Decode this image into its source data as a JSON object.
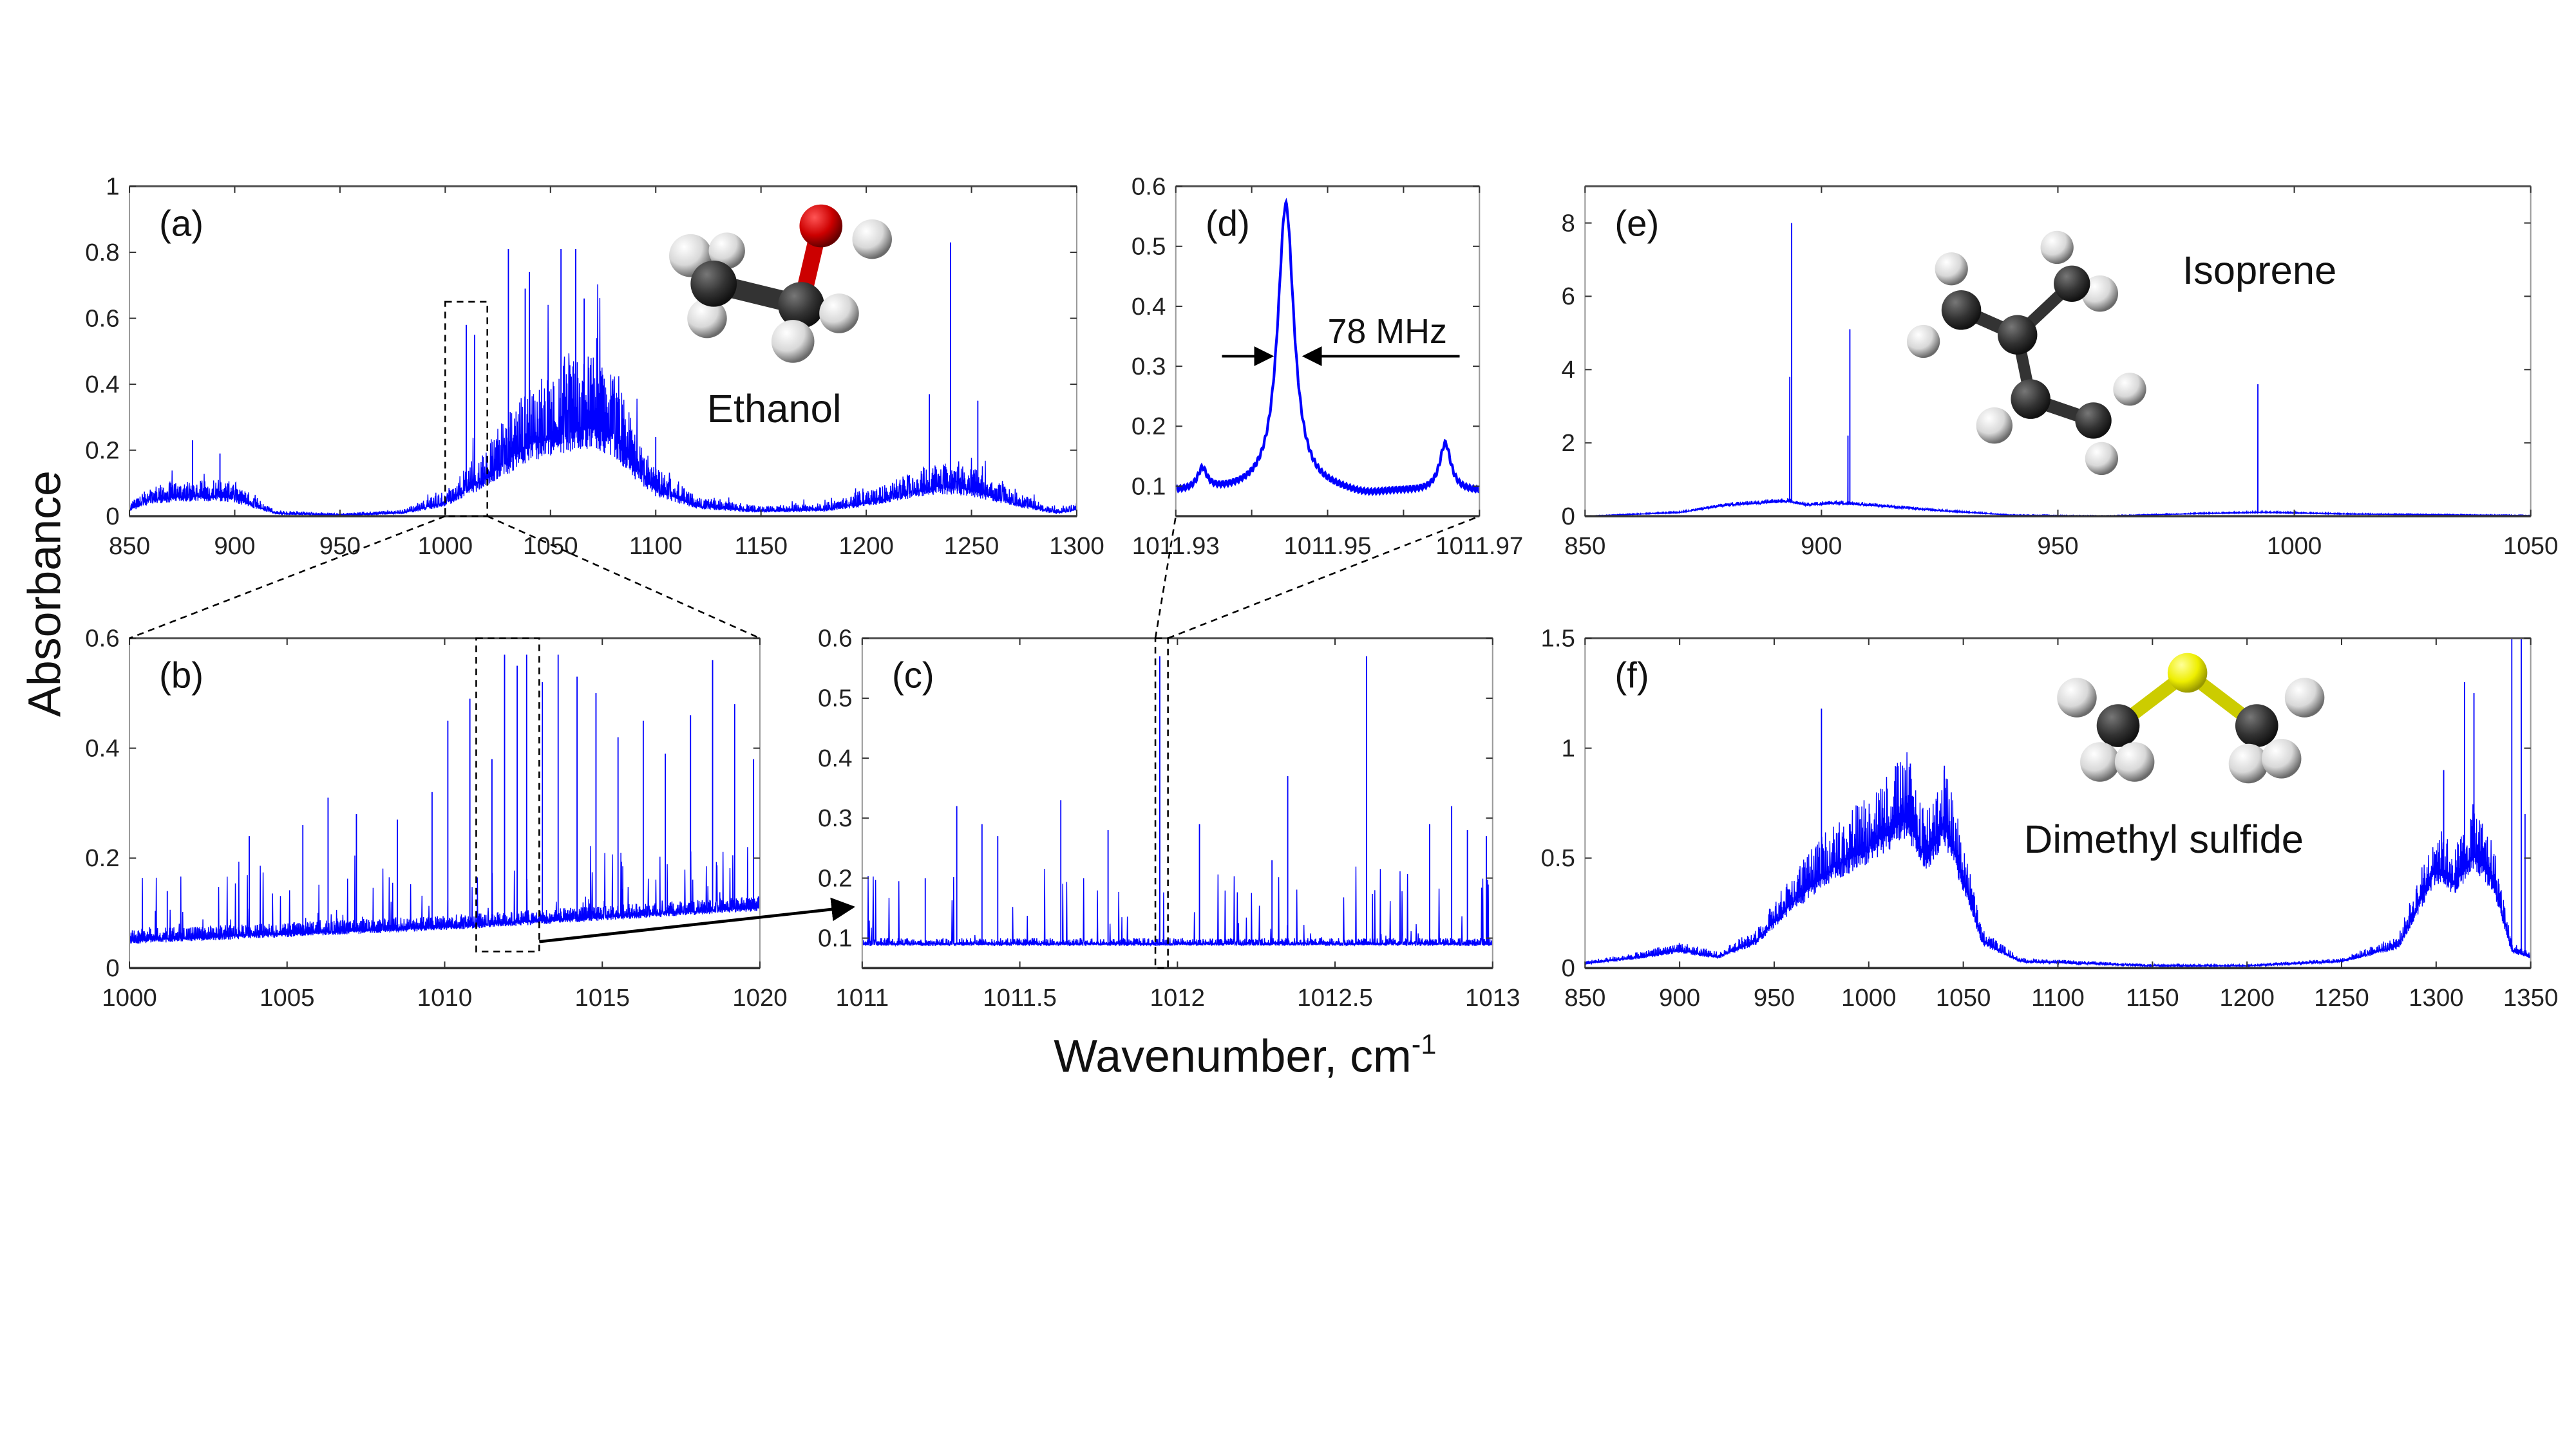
{
  "ylabel": "Absorbance",
  "xlabel": "Wavenumber, cm",
  "xlabel_superscript": "-1",
  "annotations": {
    "linewidth": "78 MHz"
  },
  "colors": {
    "line": "#0000ff",
    "axis": "#333333",
    "oxygen": "#cc0000",
    "sulfur": "#e8e800",
    "carbon": "#333333",
    "hydrogen": "#e6e6e6"
  },
  "chart_data": [
    {
      "id": "a",
      "type": "line",
      "panel_label": "(a)",
      "molecule": "Ethanol",
      "xlim": [
        850,
        1300
      ],
      "ylim": [
        0,
        1
      ],
      "xticks": [
        850,
        900,
        950,
        1000,
        1050,
        1100,
        1150,
        1200,
        1250,
        1300
      ],
      "yticks": [
        0,
        0.2,
        0.4,
        0.6,
        0.8,
        1
      ],
      "baseline": [
        [
          850,
          0.02
        ],
        [
          860,
          0.05
        ],
        [
          875,
          0.06
        ],
        [
          890,
          0.06
        ],
        [
          900,
          0.055
        ],
        [
          910,
          0.03
        ],
        [
          920,
          0.008
        ],
        [
          950,
          0.003
        ],
        [
          980,
          0.01
        ],
        [
          1000,
          0.04
        ],
        [
          1020,
          0.12
        ],
        [
          1040,
          0.22
        ],
        [
          1060,
          0.26
        ],
        [
          1070,
          0.27
        ],
        [
          1080,
          0.24
        ],
        [
          1090,
          0.15
        ],
        [
          1100,
          0.08
        ],
        [
          1120,
          0.03
        ],
        [
          1150,
          0.015
        ],
        [
          1180,
          0.02
        ],
        [
          1200,
          0.04
        ],
        [
          1220,
          0.07
        ],
        [
          1235,
          0.09
        ],
        [
          1250,
          0.08
        ],
        [
          1270,
          0.04
        ],
        [
          1290,
          0.01
        ],
        [
          1300,
          0.02
        ]
      ],
      "peaks": [
        [
          880,
          0.23
        ],
        [
          893,
          0.19
        ],
        [
          1010,
          0.58
        ],
        [
          1014,
          0.55
        ],
        [
          1030,
          0.81
        ],
        [
          1038,
          0.69
        ],
        [
          1040,
          0.74
        ],
        [
          1055,
          0.81
        ],
        [
          1062,
          0.81
        ],
        [
          1066,
          0.66
        ],
        [
          1072,
          0.54
        ],
        [
          1082,
          0.36
        ],
        [
          1100,
          0.24
        ],
        [
          1230,
          0.37
        ],
        [
          1240,
          0.83
        ],
        [
          1253,
          0.35
        ]
      ],
      "zoom_box": {
        "x": [
          1000,
          1020
        ],
        "y": [
          0,
          0.65
        ]
      }
    },
    {
      "id": "b",
      "type": "line",
      "panel_label": "(b)",
      "xlim": [
        1000,
        1020
      ],
      "ylim": [
        0,
        0.6
      ],
      "xticks": [
        1000,
        1005,
        1010,
        1015,
        1020
      ],
      "yticks": [
        0,
        0.2,
        0.4,
        0.6
      ],
      "baseline": [
        [
          1000,
          0.05
        ],
        [
          1010,
          0.075
        ],
        [
          1020,
          0.11
        ]
      ],
      "peaks": [
        [
          1001.2,
          0.14
        ],
        [
          1003.8,
          0.24
        ],
        [
          1005.5,
          0.26
        ],
        [
          1006.3,
          0.31
        ],
        [
          1007.2,
          0.28
        ],
        [
          1008.5,
          0.27
        ],
        [
          1009.6,
          0.32
        ],
        [
          1010.1,
          0.45
        ],
        [
          1010.8,
          0.49
        ],
        [
          1011.5,
          0.38
        ],
        [
          1011.9,
          0.57
        ],
        [
          1012.3,
          0.55
        ],
        [
          1012.6,
          0.57
        ],
        [
          1013.1,
          0.52
        ],
        [
          1013.6,
          0.57
        ],
        [
          1014.2,
          0.53
        ],
        [
          1014.8,
          0.5
        ],
        [
          1015.5,
          0.42
        ],
        [
          1016.3,
          0.45
        ],
        [
          1017.0,
          0.39
        ],
        [
          1017.8,
          0.46
        ],
        [
          1018.5,
          0.56
        ],
        [
          1019.2,
          0.48
        ],
        [
          1019.8,
          0.38
        ]
      ],
      "zoom_box": {
        "x": [
          1011,
          1013
        ],
        "y": [
          0.03,
          0.6
        ]
      }
    },
    {
      "id": "c",
      "type": "line",
      "panel_label": "(c)",
      "xlim": [
        1011,
        1013
      ],
      "ylim": [
        0.05,
        0.6
      ],
      "xticks": [
        1011,
        1011.5,
        1012,
        1012.5,
        1013
      ],
      "yticks": [
        0.1,
        0.2,
        0.3,
        0.4,
        0.5,
        0.6
      ],
      "baseline": [
        [
          1011,
          0.09
        ],
        [
          1013,
          0.09
        ]
      ],
      "peaks": [
        [
          1011.2,
          0.2
        ],
        [
          1011.3,
          0.32
        ],
        [
          1011.38,
          0.29
        ],
        [
          1011.43,
          0.27
        ],
        [
          1011.63,
          0.33
        ],
        [
          1011.78,
          0.28
        ],
        [
          1011.944,
          0.57
        ],
        [
          1012.07,
          0.29
        ],
        [
          1012.3,
          0.23
        ],
        [
          1012.35,
          0.37
        ],
        [
          1012.6,
          0.57
        ],
        [
          1012.8,
          0.29
        ],
        [
          1012.87,
          0.32
        ],
        [
          1012.92,
          0.28
        ],
        [
          1012.98,
          0.27
        ]
      ],
      "zoom_box": {
        "x": [
          1011.93,
          1011.97
        ],
        "y": [
          0.05,
          0.6
        ]
      }
    },
    {
      "id": "d",
      "type": "line",
      "panel_label": "(d)",
      "xlim": [
        1011.93,
        1011.97
      ],
      "ylim": [
        0.05,
        0.6
      ],
      "xticks": [
        1011.93,
        1011.94,
        1011.95,
        1011.96,
        1011.97
      ],
      "xticklabels": [
        "1011.93",
        "",
        "1011.95",
        "",
        "1011.97"
      ],
      "yticks": [
        0.1,
        0.2,
        0.3,
        0.4,
        0.5,
        0.6
      ],
      "baseline": [
        [
          1011.93,
          0.09
        ],
        [
          1011.97,
          0.09
        ]
      ],
      "lorentz_peaks": [
        [
          1011.9335,
          0.035,
          0.0015
        ],
        [
          1011.9445,
          0.48,
          0.0026
        ],
        [
          1011.9655,
          0.08,
          0.0018
        ]
      ]
    },
    {
      "id": "e",
      "type": "line",
      "panel_label": "(e)",
      "molecule": "Isoprene",
      "xlim": [
        850,
        1050
      ],
      "ylim": [
        0,
        9
      ],
      "xticks": [
        850,
        900,
        950,
        1000,
        1050
      ],
      "yticks": [
        0,
        2,
        4,
        6,
        8
      ],
      "baseline": [
        [
          850,
          0
        ],
        [
          870,
          0.1
        ],
        [
          880,
          0.3
        ],
        [
          893,
          0.4
        ],
        [
          897,
          0.3
        ],
        [
          903,
          0.35
        ],
        [
          910,
          0.3
        ],
        [
          925,
          0.15
        ],
        [
          940,
          0.03
        ],
        [
          960,
          0.01
        ],
        [
          980,
          0.07
        ],
        [
          992,
          0.1
        ],
        [
          995,
          0.1
        ],
        [
          1010,
          0.06
        ],
        [
          1050,
          0.02
        ]
      ],
      "peaks": [
        [
          893.3,
          3.8
        ],
        [
          893.7,
          8.0
        ],
        [
          905.6,
          2.2
        ],
        [
          906,
          5.1
        ],
        [
          992.3,
          3.6
        ]
      ]
    },
    {
      "id": "f",
      "type": "line",
      "panel_label": "(f)",
      "molecule": "Dimethyl sulfide",
      "xlim": [
        850,
        1350
      ],
      "ylim": [
        0,
        1.5
      ],
      "xticks": [
        850,
        900,
        950,
        1000,
        1050,
        1100,
        1150,
        1200,
        1250,
        1300,
        1350
      ],
      "yticks": [
        0,
        0.5,
        1,
        1.5
      ],
      "baseline": [
        [
          850,
          0.02
        ],
        [
          880,
          0.05
        ],
        [
          900,
          0.08
        ],
        [
          920,
          0.05
        ],
        [
          940,
          0.12
        ],
        [
          960,
          0.3
        ],
        [
          980,
          0.45
        ],
        [
          1000,
          0.55
        ],
        [
          1020,
          0.68
        ],
        [
          1030,
          0.5
        ],
        [
          1040,
          0.65
        ],
        [
          1050,
          0.4
        ],
        [
          1060,
          0.12
        ],
        [
          1080,
          0.03
        ],
        [
          1150,
          0.01
        ],
        [
          1200,
          0.01
        ],
        [
          1250,
          0.03
        ],
        [
          1280,
          0.1
        ],
        [
          1300,
          0.45
        ],
        [
          1310,
          0.38
        ],
        [
          1320,
          0.52
        ],
        [
          1330,
          0.4
        ],
        [
          1340,
          0.08
        ],
        [
          1350,
          0.05
        ]
      ],
      "peaks": [
        [
          975,
          1.18
        ],
        [
          1022,
          0.93
        ],
        [
          1040,
          0.92
        ],
        [
          1304,
          0.9
        ],
        [
          1315,
          1.3
        ],
        [
          1320,
          1.25
        ],
        [
          1340,
          1.5
        ],
        [
          1345,
          1.5
        ],
        [
          1347,
          0.7
        ]
      ]
    }
  ]
}
